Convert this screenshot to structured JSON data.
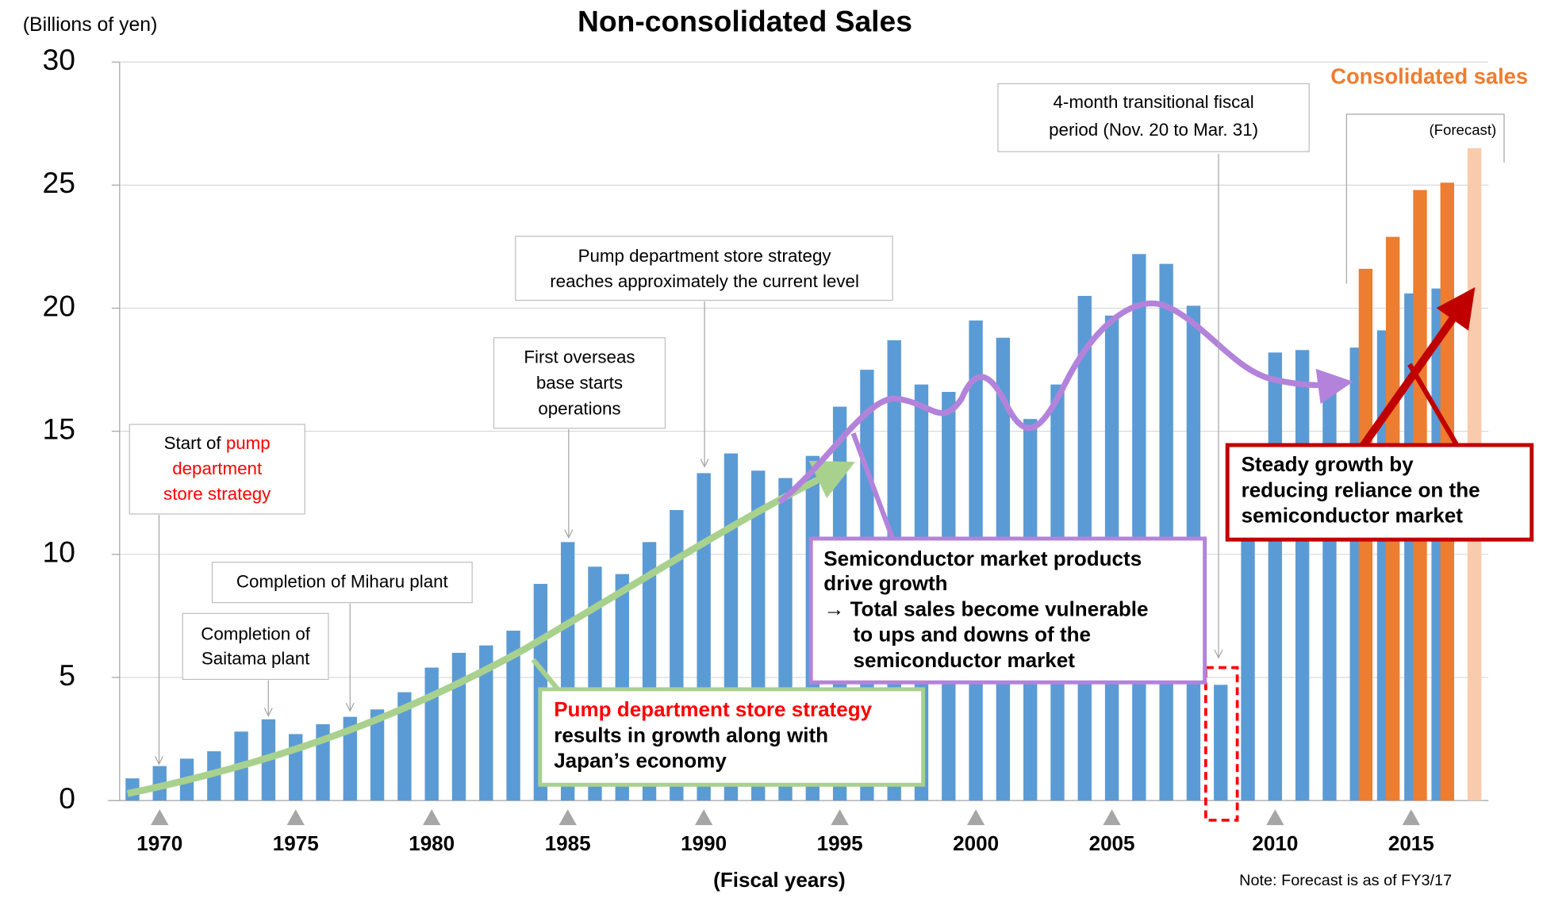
{
  "chart_data": {
    "type": "bar",
    "title": "Non-consolidated Sales",
    "y_unit": "(Billions of yen)",
    "x_label": "(Fiscal years)",
    "note": "Note: Forecast is as of FY3/17",
    "categories": [
      null,
      "1970",
      null,
      null,
      null,
      null,
      "1975",
      null,
      null,
      null,
      null,
      "1980",
      null,
      null,
      null,
      null,
      "1985",
      null,
      null,
      null,
      null,
      "1990",
      null,
      null,
      null,
      null,
      "1995",
      null,
      null,
      null,
      null,
      "2000",
      null,
      null,
      null,
      null,
      "2005",
      null,
      null,
      null,
      null,
      null,
      "2010",
      null,
      null,
      null,
      null,
      "2015",
      null,
      null
    ],
    "series": [
      {
        "name": "Non-consolidated Sales",
        "color": "#5b9bd5",
        "values": [
          0.9,
          1.4,
          1.7,
          2.0,
          2.8,
          3.3,
          2.7,
          3.1,
          3.4,
          3.7,
          4.4,
          5.4,
          6.0,
          6.3,
          6.9,
          8.8,
          10.5,
          9.5,
          9.2,
          10.5,
          11.8,
          13.3,
          14.1,
          13.4,
          13.1,
          14.0,
          16.0,
          17.5,
          18.7,
          16.9,
          16.6,
          19.5,
          18.8,
          15.5,
          16.9,
          20.5,
          19.7,
          22.2,
          21.8,
          20.1,
          4.7,
          10.6,
          18.2,
          18.3,
          16.6,
          18.4,
          19.1,
          20.6,
          20.8,
          null
        ]
      },
      {
        "name": "Consolidated sales",
        "color": "#ed7d31",
        "forecast_color": "#f8cbad",
        "values": [
          null,
          null,
          null,
          null,
          null,
          null,
          null,
          null,
          null,
          null,
          null,
          null,
          null,
          null,
          null,
          null,
          null,
          null,
          null,
          null,
          null,
          null,
          null,
          null,
          null,
          null,
          null,
          null,
          null,
          null,
          null,
          null,
          null,
          null,
          null,
          null,
          null,
          null,
          null,
          null,
          null,
          null,
          null,
          null,
          null,
          21.6,
          22.9,
          24.8,
          25.1,
          26.5
        ]
      }
    ],
    "forecast_label": "(Forecast)",
    "ylim": [
      0,
      30
    ],
    "yticks": [
      0,
      5,
      10,
      15,
      20,
      25,
      30
    ],
    "grid": true,
    "annotations": {
      "transitional": [
        "4-month transitional fiscal",
        "period (Nov. 20 to Mar. 31)"
      ],
      "current_level": [
        "Pump department store strategy",
        "reaches approximately the current level"
      ],
      "overseas": [
        "First overseas",
        "base starts",
        "operations"
      ],
      "start": {
        "prefix": "Start of ",
        "line1": "pump",
        "line2": "department",
        "line3": "store strategy"
      },
      "miharu": [
        "Completion of Miharu plant"
      ],
      "saitama": [
        "Completion of",
        "Saitama plant"
      ],
      "growth": {
        "highlight": "Pump department store strategy",
        "lines": [
          "results in growth along with",
          "Japan’s economy"
        ]
      },
      "semiconductor": [
        "Semiconductor market products",
        "drive growth",
        "→ Total sales become vulnerable",
        "to ups and downs of the",
        "semiconductor market"
      ],
      "steady": [
        "Steady growth by",
        "reducing reliance on the",
        "semiconductor market"
      ]
    }
  }
}
